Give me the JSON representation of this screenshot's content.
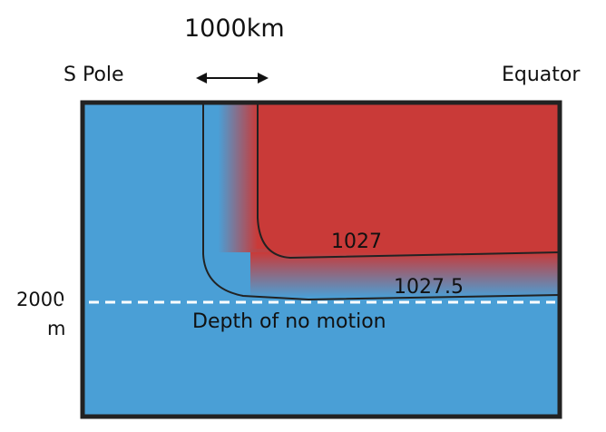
{
  "labels": {
    "scale": "1000km",
    "left_edge": "S Pole",
    "right_edge": "Equator",
    "depth_value": "2000",
    "depth_unit": "m",
    "no_motion": "Depth of no motion",
    "isopycnal_upper": "1027",
    "isopycnal_lower": "1027.5"
  },
  "colors": {
    "cold_water": "#4a9fd6",
    "warm_water": "#c93a38",
    "outline": "#222222"
  },
  "icons": {
    "scale_arrow": "double-headed-arrow-icon"
  }
}
